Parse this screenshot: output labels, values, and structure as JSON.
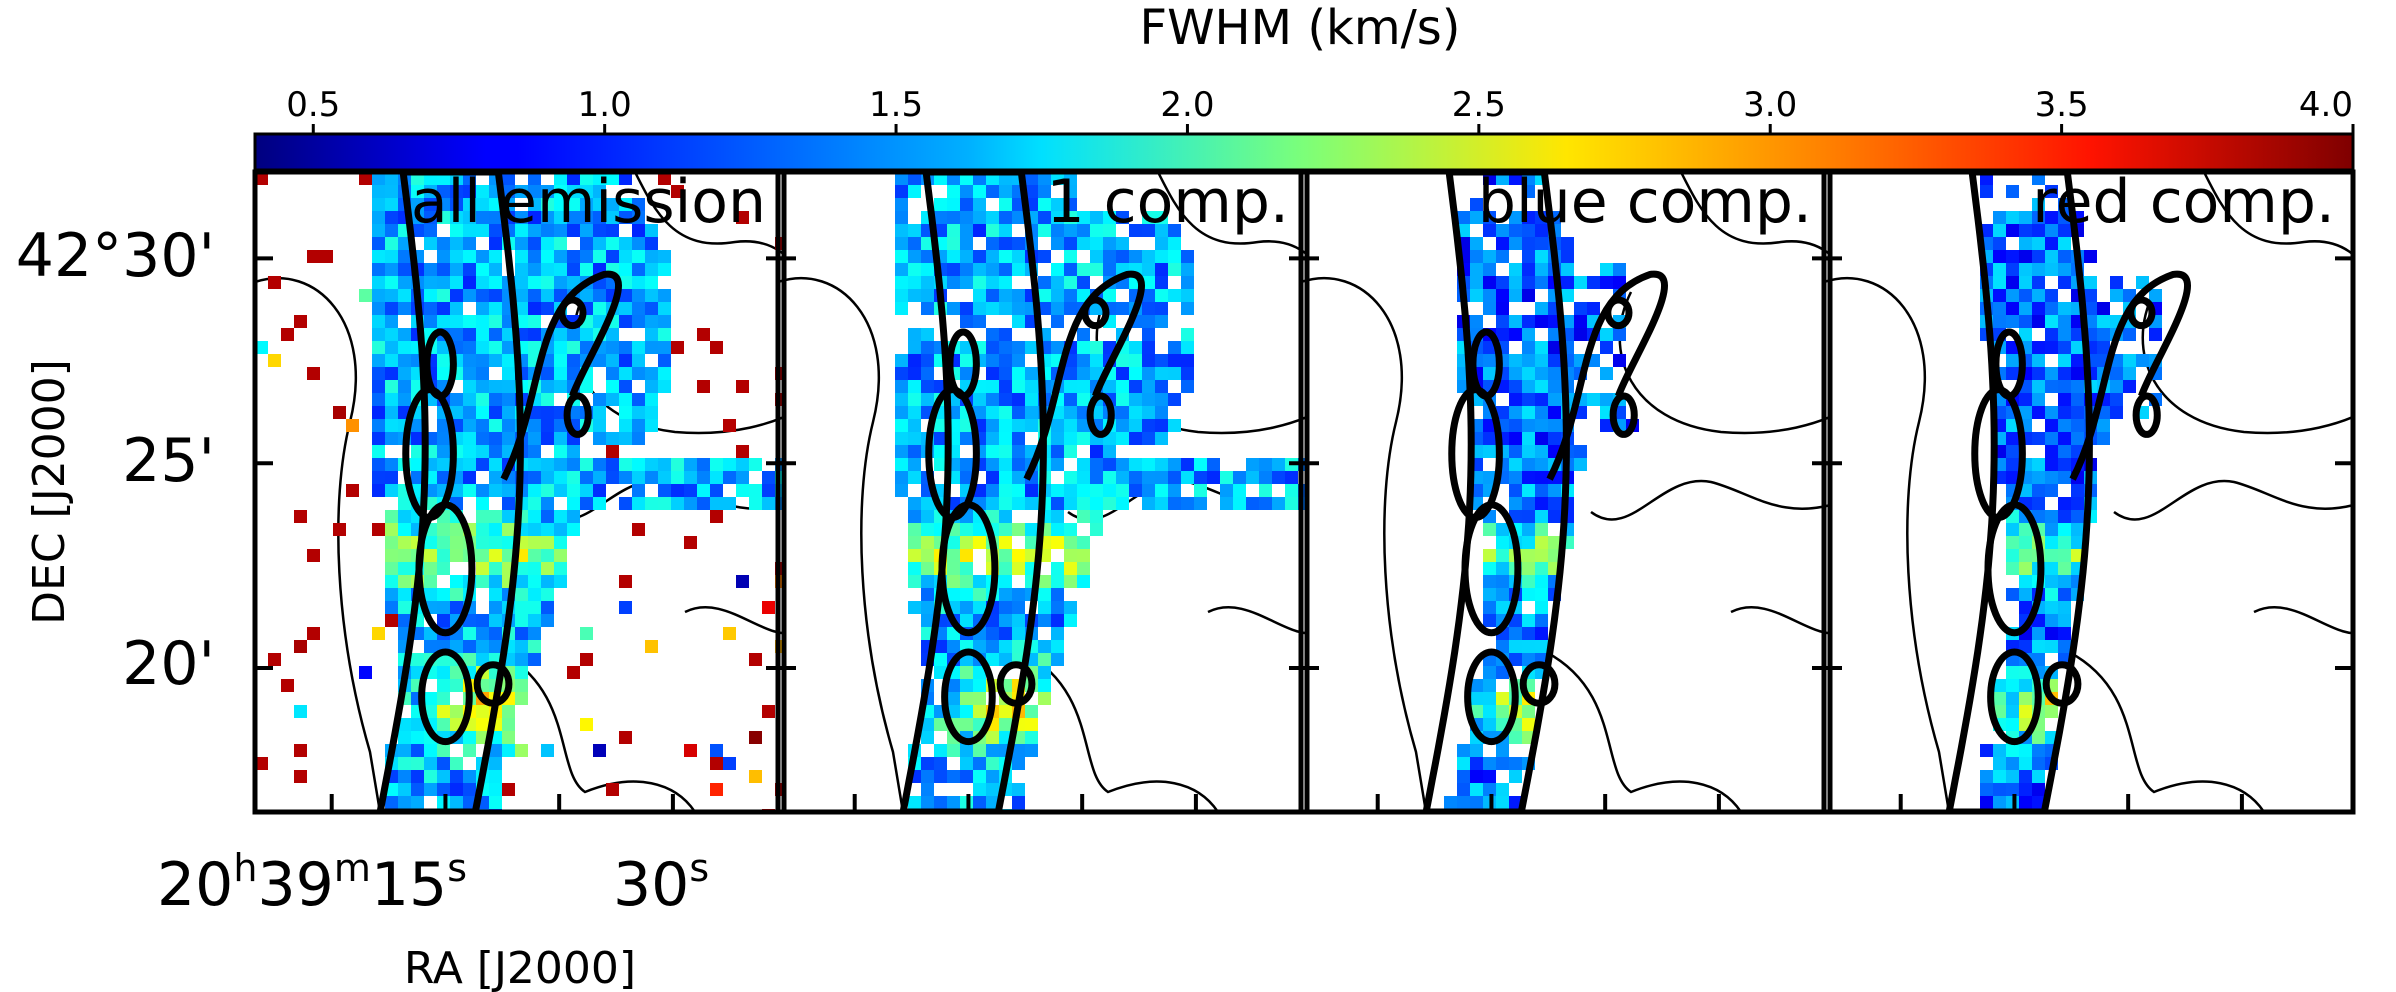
{
  "colorbar": {
    "label": "FWHM (km/s)",
    "ticks": [
      "0.5",
      "1.0",
      "1.5",
      "2.0",
      "2.5",
      "3.0",
      "3.5",
      "4.0"
    ],
    "tick_values": [
      0.5,
      1.0,
      1.5,
      2.0,
      2.5,
      3.0,
      3.5,
      4.0
    ],
    "range": [
      0.4,
      4.0
    ],
    "colormap": "jet"
  },
  "chart_data": {
    "type": "heatmap",
    "panels": [
      {
        "title": "all emission",
        "coverage": "full"
      },
      {
        "title": "1 comp.",
        "coverage": "single"
      },
      {
        "title": "blue comp.",
        "coverage": "blue"
      },
      {
        "title": "red comp.",
        "coverage": "red"
      }
    ],
    "xlabel": "RA [J2000]",
    "ylabel": "DEC [J2000]",
    "xticks": {
      "labels": [
        "20h39m15s",
        "30s"
      ]
    },
    "yticks": {
      "labels": [
        "42°30'",
        "25'",
        "20'"
      ],
      "values_arcmin": [
        30,
        25,
        20
      ]
    },
    "value_unit": "km/s",
    "contours": "integrated intensity (black)"
  }
}
